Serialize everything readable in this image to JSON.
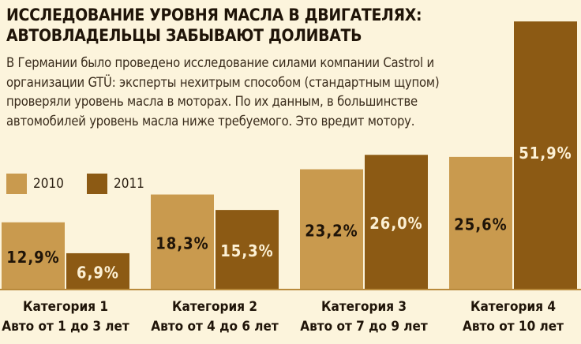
{
  "title_lines": [
    "ИССЛЕДОВАНИЕ УРОВНЯ МАСЛА В ДВИГАТЕЛЯХ:",
    "АВТОВЛАДЕЛЬЦЫ ЗАБЫВАЮТ ДОЛИВАТЬ"
  ],
  "description": "В Германии было проведено исследование силами компании Castrol и организации GTÜ: эксперты нехитрым способом (стандартным щупом) проверяли уровень масла в моторах. По их данным, в большинстве автомобилей уровень масла ниже требуемого. Это вредит мотору.",
  "colors": {
    "background": "#fcf4dc",
    "series_2010": "#c99a4e",
    "series_2011": "#8c5a14",
    "text": "#2b1f12"
  },
  "chart_data": {
    "type": "bar",
    "title": "ИССЛЕДОВАНИЕ УРОВНЯ МАСЛА В ДВИГАТЕЛЯХ: АВТОВЛАДЕЛЬЦЫ ЗАБЫВАЮТ ДОЛИВАТЬ",
    "categories": [
      [
        "Категория 1",
        "Авто от 1 до 3 лет"
      ],
      [
        "Категория 2",
        "Авто от 4 до 6 лет"
      ],
      [
        "Категория 3",
        "Авто от 7 до 9 лет"
      ],
      [
        "Категория 4",
        "Авто от 10 лет"
      ]
    ],
    "series": [
      {
        "name": "2010",
        "values": [
          12.9,
          18.3,
          23.2,
          25.6
        ],
        "labels": [
          "12,9%",
          "18,3%",
          "23,2%",
          "25,6%"
        ]
      },
      {
        "name": "2011",
        "values": [
          6.9,
          15.3,
          26.0,
          51.9
        ],
        "labels": [
          "6,9%",
          "15,3%",
          "26,0%",
          "51,9%"
        ]
      }
    ],
    "ylim": [
      0,
      53
    ],
    "grid": false,
    "legend": "top-left"
  }
}
